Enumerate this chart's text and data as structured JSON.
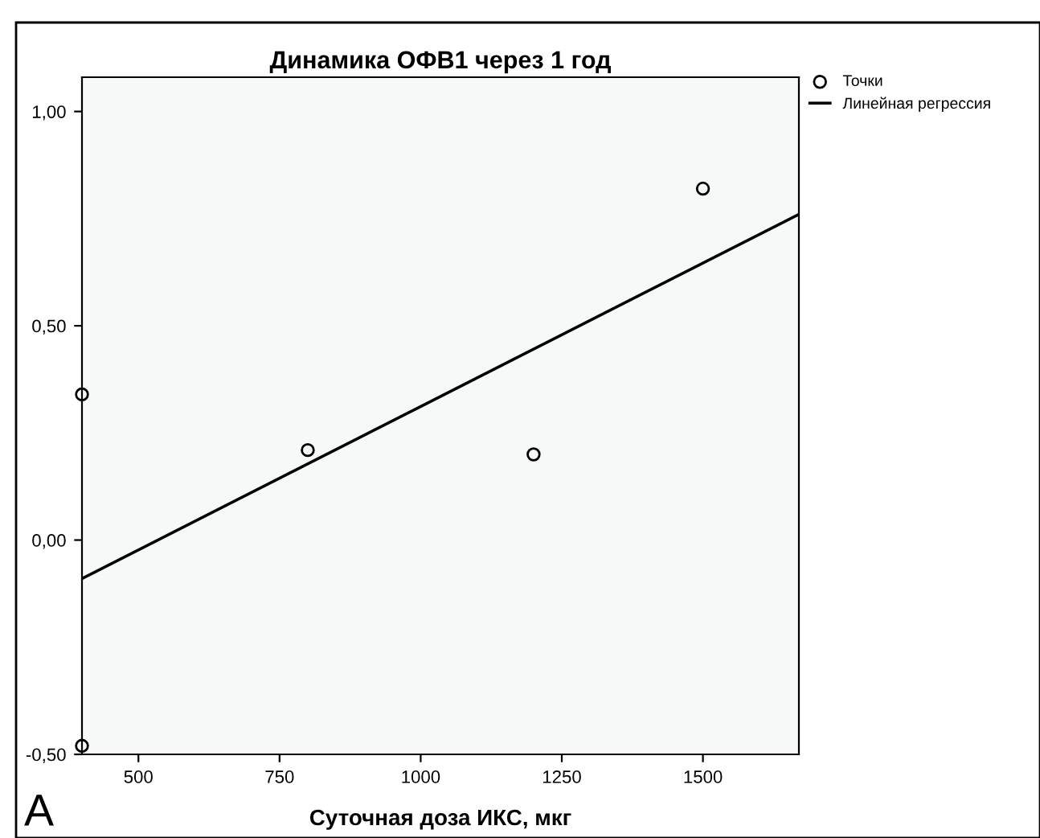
{
  "chart_data": {
    "type": "scatter",
    "title": "Динамика ОФВ1 через 1 год",
    "xlabel": "Суточная доза ИКС, мкг",
    "series": [
      {
        "name": "Точки",
        "color": "#000000",
        "marker": "circle",
        "x": [
          400,
          800,
          1200,
          1500,
          400
        ],
        "values": [
          0.34,
          0.21,
          0.2,
          0.82,
          -0.48
        ]
      },
      {
        "name": "Линейная регрессия",
        "type": "line",
        "color": "#000000",
        "marker": "none",
        "line_style": "solid",
        "x": [
          400,
          1670
        ],
        "values": [
          -0.09,
          0.76
        ]
      }
    ],
    "xlim": [
      400,
      1670
    ],
    "xticks": [
      500,
      750,
      1000,
      1250,
      1500
    ],
    "ylim": [
      -0.5,
      1.08
    ],
    "yticks": [
      {
        "value": -0.5,
        "label": "-0,50"
      },
      {
        "value": 0,
        "label": "0,00"
      },
      {
        "value": 0.5,
        "label": "0,50"
      },
      {
        "value": 1.0,
        "label": "1,00"
      }
    ],
    "grid": false,
    "legend": "top right",
    "annotations": [
      "А"
    ]
  }
}
